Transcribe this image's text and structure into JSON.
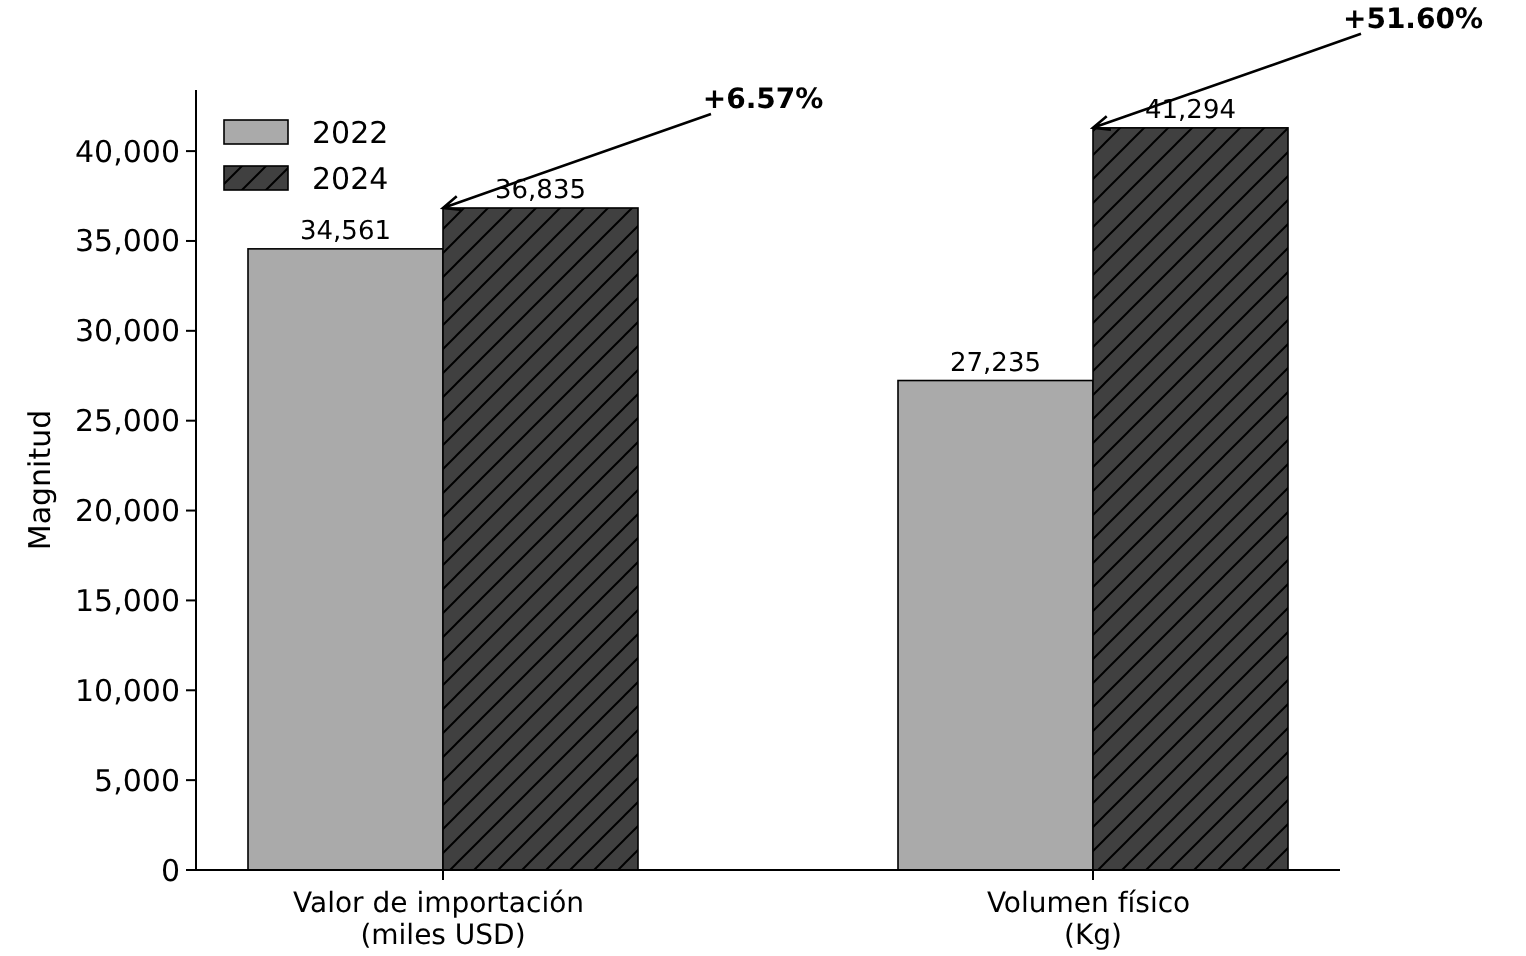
{
  "chart_data": {
    "type": "bar",
    "ylabel": "Magnitud",
    "categories": [
      "Valor de importación\n(miles USD)",
      "Volumen físico\n(Kg)"
    ],
    "series": [
      {
        "name": "2022",
        "color": "#aaaaaa",
        "values": [
          34561,
          27235
        ],
        "value_labels": [
          "34,561",
          "27,235"
        ]
      },
      {
        "name": "2024",
        "color": "#404040",
        "values": [
          36835,
          41294
        ],
        "value_labels": [
          "36,835",
          "41,294"
        ]
      }
    ],
    "ylim": [
      0,
      43400
    ],
    "yticks": [
      {
        "value": 0,
        "label": "0"
      },
      {
        "value": 5000,
        "label": "5,000"
      },
      {
        "value": 10000,
        "label": "10,000"
      },
      {
        "value": 15000,
        "label": "15,000"
      },
      {
        "value": 20000,
        "label": "20,000"
      },
      {
        "value": 25000,
        "label": "25,000"
      },
      {
        "value": 30000,
        "label": "30,000"
      },
      {
        "value": 35000,
        "label": "35,000"
      },
      {
        "value": 40000,
        "label": "40,000"
      }
    ],
    "legend": "top left",
    "grid": false,
    "annotations": [
      {
        "text": "+6.57%",
        "x": "Valor de importación\n(miles USD)",
        "y": 36835
      },
      {
        "text": "+51.60%",
        "x": "Volumen físico\n(Kg)",
        "y": 41294
      }
    ]
  }
}
